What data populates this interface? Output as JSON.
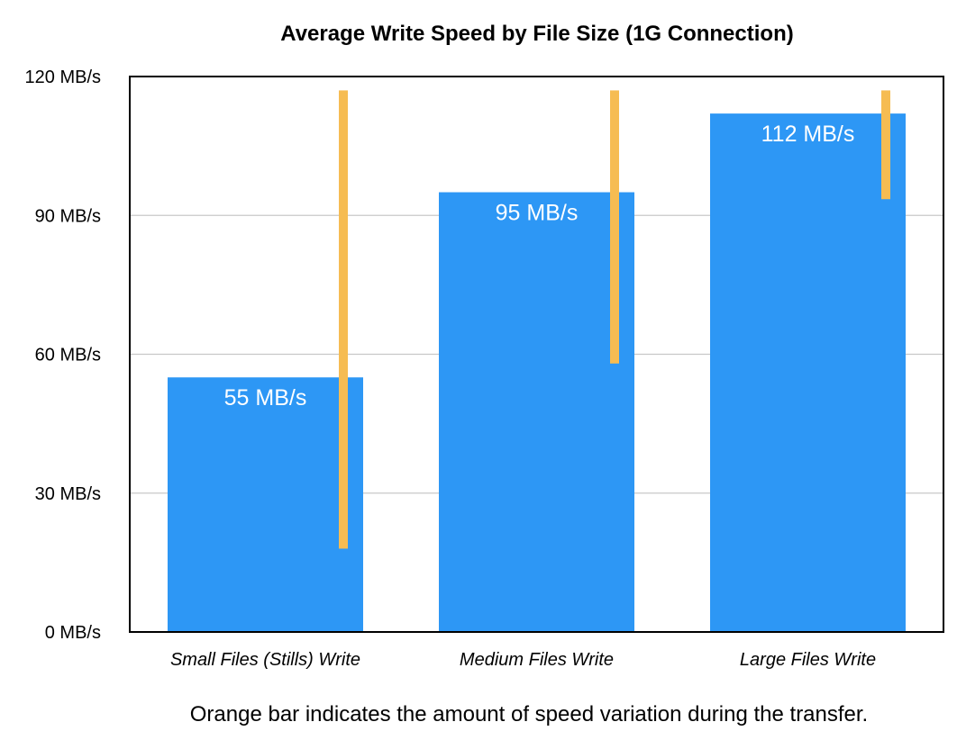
{
  "chart_data": {
    "type": "bar",
    "title": "Average Write Speed by File Size (1G Connection)",
    "categories": [
      "Small Files (Stills) Write",
      "Medium Files Write",
      "Large Files Write"
    ],
    "values": [
      55,
      95,
      112
    ],
    "data_labels": [
      "55 MB/s",
      "95 MB/s",
      "112 MB/s"
    ],
    "variation_ranges": [
      [
        18,
        117
      ],
      [
        58,
        117
      ],
      [
        93.5,
        117
      ]
    ],
    "ylim": [
      0,
      120
    ],
    "yticks": [
      {
        "value": 0,
        "label": "0 MB/s"
      },
      {
        "value": 30,
        "label": "30 MB/s"
      },
      {
        "value": 60,
        "label": "60 MB/s"
      },
      {
        "value": 90,
        "label": "90 MB/s"
      },
      {
        "value": 120,
        "label": "120 MB/s"
      }
    ],
    "grid": true,
    "colors": {
      "bar": "#2d97f5",
      "variation": "#f6bc52",
      "grid": "#c8c8c8"
    },
    "footnote": "Orange bar indicates the amount of speed variation during the transfer."
  }
}
